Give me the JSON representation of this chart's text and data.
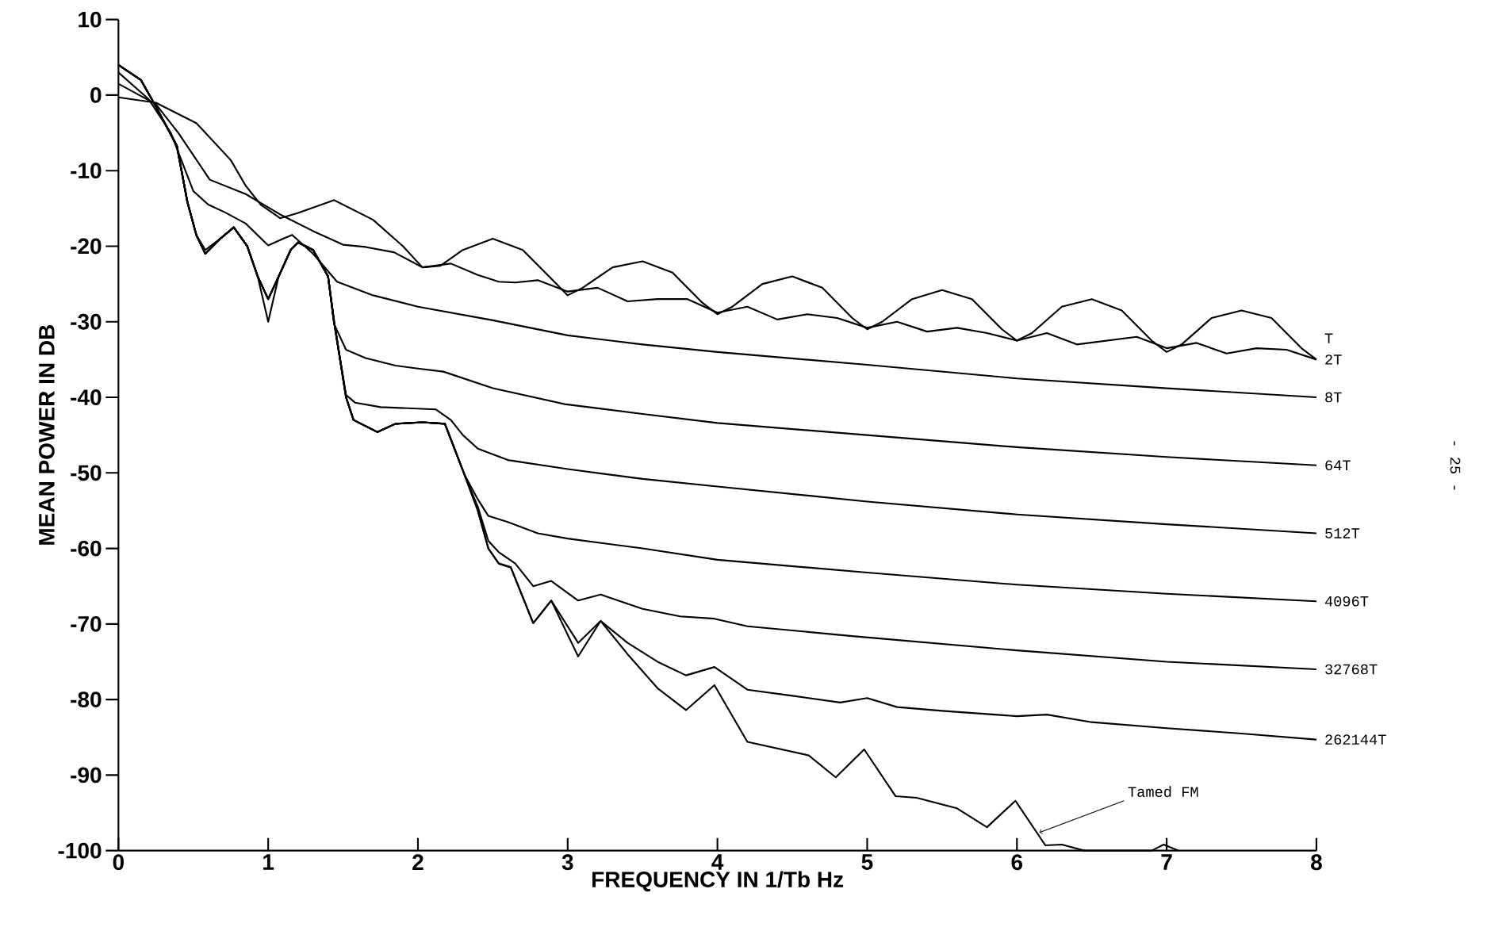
{
  "chart_data": {
    "type": "line",
    "xlabel": "FREQUENCY IN 1/Tb Hz",
    "ylabel": "MEAN POWER IN DB",
    "xlim": [
      0,
      8
    ],
    "ylim": [
      -100,
      10
    ],
    "xticks": [
      0,
      1,
      2,
      3,
      4,
      5,
      6,
      7,
      8
    ],
    "yticks": [
      -100,
      -90,
      -80,
      -70,
      -60,
      -50,
      -40,
      -30,
      -20,
      -10,
      0,
      10
    ],
    "line_style": "solid",
    "series": [
      {
        "name": "T",
        "color": "#000000",
        "x": [
          0,
          0.25,
          0.52,
          0.75,
          0.85,
          0.95,
          1.08,
          1.2,
          1.44,
          1.7,
          1.9,
          2.03,
          2.15,
          2.3,
          2.5,
          2.7,
          2.9,
          3.0,
          3.1,
          3.3,
          3.5,
          3.7,
          3.9,
          4.0,
          4.1,
          4.3,
          4.5,
          4.7,
          4.9,
          5.0,
          5.1,
          5.3,
          5.5,
          5.7,
          5.9,
          6.0,
          6.1,
          6.3,
          6.5,
          6.7,
          6.9,
          7.0,
          7.1,
          7.3,
          7.5,
          7.7,
          7.9,
          8.0
        ],
        "values": [
          -0.3,
          -1,
          -3.7,
          -8.6,
          -12,
          -14.5,
          -16.3,
          -15.6,
          -13.9,
          -16.5,
          -20,
          -22.8,
          -22.6,
          -20.5,
          -19,
          -20.5,
          -24.5,
          -26.5,
          -25.5,
          -22.8,
          -22,
          -23.5,
          -27.5,
          -29,
          -28,
          -25,
          -24,
          -25.5,
          -29.5,
          -31,
          -30,
          -27,
          -25.8,
          -27,
          -31,
          -32.5,
          -31.5,
          -28,
          -27,
          -28.5,
          -32.5,
          -34,
          -33,
          -29.5,
          -28.5,
          -29.5,
          -33.5,
          -35
        ]
      },
      {
        "name": "2T",
        "color": "#000000",
        "x": [
          0,
          0.25,
          0.4,
          0.61,
          0.85,
          1.08,
          1.3,
          1.5,
          1.65,
          1.84,
          2.03,
          2.22,
          2.4,
          2.54,
          2.65,
          2.8,
          3.0,
          3.2,
          3.4,
          3.6,
          3.8,
          4.0,
          4.2,
          4.4,
          4.6,
          4.8,
          5.0,
          5.2,
          5.4,
          5.6,
          5.8,
          6.0,
          6.2,
          6.4,
          6.6,
          6.8,
          7.0,
          7.2,
          7.4,
          7.6,
          7.8,
          8.0
        ],
        "values": [
          1.5,
          -1.2,
          -5,
          -11.2,
          -13.1,
          -15.8,
          -18,
          -19.8,
          -20.1,
          -20.8,
          -22.8,
          -22.3,
          -23.8,
          -24.7,
          -24.8,
          -24.5,
          -26,
          -25.5,
          -27.3,
          -27,
          -27,
          -28.8,
          -28,
          -29.7,
          -29,
          -29.5,
          -30.8,
          -30,
          -31.3,
          -30.8,
          -31.5,
          -32.5,
          -31.5,
          -33,
          -32.5,
          -32,
          -33.5,
          -32.8,
          -34.2,
          -33.5,
          -33.7,
          -35
        ]
      },
      {
        "name": "8T",
        "color": "#000000",
        "x": [
          0,
          0.2,
          0.35,
          0.5,
          0.6,
          0.71,
          0.85,
          1.0,
          1.1,
          1.16,
          1.3,
          1.46,
          1.7,
          2.0,
          2.5,
          3.0,
          3.5,
          4.0,
          5.0,
          6.0,
          7.0,
          8.0
        ],
        "values": [
          3,
          -0.5,
          -5,
          -12.7,
          -14.5,
          -15.5,
          -17,
          -19.9,
          -19,
          -18.5,
          -21,
          -24.7,
          -26.5,
          -28,
          -29.8,
          -31.8,
          -33,
          -34,
          -35.7,
          -37.5,
          -38.8,
          -40
        ]
      },
      {
        "name": "64T",
        "color": "#000000",
        "x": [
          0,
          0.15,
          0.25,
          0.39,
          0.46,
          0.52,
          0.58,
          0.68,
          0.77,
          0.86,
          0.93,
          1.0,
          1.07,
          1.15,
          1.2,
          1.3,
          1.4,
          1.44,
          1.52,
          1.65,
          1.85,
          2.0,
          2.17,
          2.5,
          2.98,
          3.5,
          4.0,
          5.0,
          6.0,
          7.0,
          8.0
        ],
        "values": [
          4,
          2,
          -1.5,
          -6.7,
          -14.1,
          -18.5,
          -20.5,
          -19,
          -17.5,
          -20,
          -24,
          -30,
          -24,
          -20.5,
          -19.5,
          -20.5,
          -24,
          -30.3,
          -33.7,
          -34.8,
          -35.8,
          -36.2,
          -36.6,
          -38.8,
          -40.9,
          -42.2,
          -43.4,
          -45,
          -46.6,
          -47.9,
          -49
        ]
      },
      {
        "name": "512T",
        "color": "#000000",
        "x": [
          0,
          0.15,
          0.25,
          0.39,
          0.46,
          0.52,
          0.58,
          0.68,
          0.77,
          0.86,
          0.93,
          1.0,
          1.07,
          1.15,
          1.2,
          1.3,
          1.4,
          1.44,
          1.52,
          1.58,
          1.75,
          2.12,
          2.22,
          2.3,
          2.4,
          2.6,
          3.0,
          3.5,
          4.0,
          5.0,
          6.0,
          7.0,
          8.0
        ],
        "values": [
          4,
          2,
          -1.5,
          -6.7,
          -14.1,
          -18.5,
          -21,
          -19,
          -17.5,
          -20,
          -24,
          -27,
          -24,
          -20.5,
          -19.5,
          -20.5,
          -24,
          -30,
          -39.7,
          -40.7,
          -41.3,
          -41.6,
          -43,
          -45,
          -46.8,
          -48.3,
          -49.5,
          -50.8,
          -51.8,
          -53.8,
          -55.5,
          -56.8,
          -58
        ]
      },
      {
        "name": "4096T",
        "color": "#000000",
        "x": [
          0,
          0.15,
          0.25,
          0.39,
          0.46,
          0.52,
          0.58,
          0.68,
          0.77,
          0.86,
          0.93,
          1.0,
          1.07,
          1.15,
          1.2,
          1.3,
          1.4,
          1.44,
          1.52,
          1.57,
          1.73,
          1.85,
          2.03,
          2.18,
          2.31,
          2.4,
          2.47,
          2.6,
          2.8,
          3.0,
          3.5,
          4.0,
          5.0,
          6.0,
          7.0,
          8.0
        ],
        "values": [
          4,
          2,
          -1.5,
          -6.7,
          -14.1,
          -18.5,
          -21,
          -19,
          -17.5,
          -20,
          -24,
          -27,
          -24,
          -20.5,
          -19.5,
          -20.5,
          -24,
          -30,
          -40,
          -43,
          -44.6,
          -43.5,
          -43.3,
          -43.5,
          -50.2,
          -53.5,
          -55.7,
          -56.5,
          -58,
          -58.7,
          -60,
          -61.5,
          -63.2,
          -64.8,
          -66,
          -67
        ]
      },
      {
        "name": "32768T",
        "color": "#000000",
        "x": [
          0,
          0.15,
          0.25,
          0.39,
          0.46,
          0.52,
          0.58,
          0.68,
          0.77,
          0.86,
          0.93,
          1.0,
          1.07,
          1.15,
          1.2,
          1.3,
          1.4,
          1.44,
          1.52,
          1.57,
          1.73,
          1.85,
          2.03,
          2.18,
          2.31,
          2.4,
          2.47,
          2.54,
          2.65,
          2.77,
          2.89,
          3.07,
          3.22,
          3.5,
          3.75,
          3.98,
          4.2,
          4.9,
          6.0,
          7.0,
          8.0
        ],
        "values": [
          4,
          2,
          -1.5,
          -6.7,
          -14.1,
          -18.5,
          -21,
          -19,
          -17.5,
          -20,
          -24,
          -27,
          -24,
          -20.5,
          -19.5,
          -20.5,
          -24,
          -30,
          -40,
          -43,
          -44.6,
          -43.5,
          -43.3,
          -43.5,
          -50.2,
          -54.5,
          -59,
          -60.5,
          -62,
          -65,
          -64.3,
          -66.9,
          -66.1,
          -68,
          -69,
          -69.3,
          -70.3,
          -71.6,
          -73.5,
          -75,
          -76
        ]
      },
      {
        "name": "262144T",
        "color": "#000000",
        "x": [
          0,
          0.15,
          0.25,
          0.39,
          0.46,
          0.52,
          0.58,
          0.68,
          0.77,
          0.86,
          0.93,
          1.0,
          1.07,
          1.15,
          1.2,
          1.3,
          1.4,
          1.44,
          1.52,
          1.57,
          1.73,
          1.85,
          2.03,
          2.18,
          2.31,
          2.4,
          2.47,
          2.54,
          2.62,
          2.77,
          2.89,
          3.07,
          3.22,
          3.4,
          3.6,
          3.79,
          3.98,
          4.2,
          4.5,
          4.82,
          5.0,
          5.2,
          5.5,
          6.0,
          6.2,
          6.5,
          7.0,
          7.5,
          8.0
        ],
        "values": [
          4,
          2,
          -1.5,
          -6.7,
          -14.1,
          -18.5,
          -21,
          -19,
          -17.5,
          -20,
          -24,
          -27,
          -24,
          -20.5,
          -19.5,
          -20.5,
          -24,
          -30,
          -40,
          -43,
          -44.6,
          -43.5,
          -43.3,
          -43.5,
          -50.2,
          -55,
          -60,
          -62,
          -62.5,
          -69.9,
          -66.9,
          -72.5,
          -69.6,
          -72.5,
          -75,
          -76.8,
          -75.7,
          -78.7,
          -79.5,
          -80.4,
          -79.8,
          -81,
          -81.5,
          -82.2,
          -82,
          -83,
          -83.8,
          -84.5,
          -85.3
        ]
      },
      {
        "color": "#000000",
        "x": [
          0,
          0.15,
          0.25,
          0.39,
          0.46,
          0.52,
          0.58,
          0.68,
          0.77,
          0.86,
          0.93,
          1.0,
          1.07,
          1.15,
          1.2,
          1.3,
          1.4,
          1.44,
          1.52,
          1.57,
          1.73,
          1.85,
          2.03,
          2.18,
          2.31,
          2.4,
          2.47,
          2.54,
          2.62,
          2.77,
          2.89,
          3.07,
          3.22,
          3.4,
          3.6,
          3.79,
          3.98,
          4.2,
          4.61,
          4.79,
          4.98,
          5.19,
          5.33,
          5.6,
          5.8,
          5.99,
          6.19,
          6.3,
          6.45,
          6.9,
          6.98,
          7.08
        ],
        "values": [
          4,
          2,
          -1.5,
          -6.7,
          -14.1,
          -18.5,
          -21,
          -19,
          -17.5,
          -20,
          -24,
          -27,
          -24,
          -20.5,
          -19.5,
          -20.5,
          -24,
          -30,
          -40,
          -43,
          -44.6,
          -43.5,
          -43.3,
          -43.5,
          -50.2,
          -55,
          -60,
          -62,
          -62.5,
          -69.9,
          -66.9,
          -74.3,
          -69.6,
          -74,
          -78.5,
          -81.4,
          -78.1,
          -85.6,
          -87.4,
          -90.3,
          -86.6,
          -92.8,
          -93,
          -94.4,
          -96.9,
          -93.4,
          -99.3,
          -99.2,
          -100,
          -100,
          -99.2,
          -100
        ]
      }
    ],
    "annotations": [
      {
        "text": "Tamed FM",
        "x": 6.15,
        "y": -97.6
      },
      "- 25 -"
    ]
  }
}
